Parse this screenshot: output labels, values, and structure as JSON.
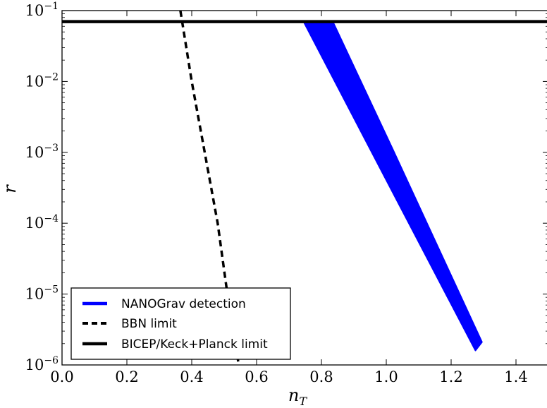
{
  "chart_data": {
    "type": "line",
    "title": "",
    "xlabel": {
      "base": "n",
      "sub": "T"
    },
    "ylabel": "r",
    "xlim": [
      0.0,
      1.5
    ],
    "ylim": [
      1e-06,
      0.1
    ],
    "yscale": "log",
    "grid": false,
    "legend_position": "lower-left",
    "x_ticks": [
      {
        "value": 0.0,
        "label": "0.0"
      },
      {
        "value": 0.2,
        "label": "0.2"
      },
      {
        "value": 0.4,
        "label": "0.4"
      },
      {
        "value": 0.6,
        "label": "0.6"
      },
      {
        "value": 0.8,
        "label": "0.8"
      },
      {
        "value": 1.0,
        "label": "1.0"
      },
      {
        "value": 1.2,
        "label": "1.2"
      },
      {
        "value": 1.4,
        "label": "1.4"
      }
    ],
    "y_ticks": [
      {
        "value": 1e-06,
        "base": "10",
        "exp": "−6"
      },
      {
        "value": 1e-05,
        "base": "10",
        "exp": "−5"
      },
      {
        "value": 0.0001,
        "base": "10",
        "exp": "−4"
      },
      {
        "value": 0.001,
        "base": "10",
        "exp": "−3"
      },
      {
        "value": 0.01,
        "base": "10",
        "exp": "−2"
      },
      {
        "value": 0.1,
        "base": "10",
        "exp": "−1"
      }
    ],
    "series": [
      {
        "name": "NANOGrav detection",
        "style": "band",
        "color": "#0000ff",
        "x": [
          0.745,
          0.835,
          1.02,
          1.295,
          1.275,
          1.015
        ],
        "y": [
          0.07,
          0.07,
          0.0011,
          2.1e-06,
          1.6e-06,
          0.0003
        ]
      },
      {
        "name": "BBN limit",
        "style": "dashed",
        "color": "#000000",
        "x": [
          0.365,
          0.4,
          0.44,
          0.48,
          0.51,
          0.545
        ],
        "y": [
          0.1,
          0.01,
          0.001,
          0.0001,
          1e-05,
          1e-06
        ]
      },
      {
        "name": "BICEP/Keck+Planck limit",
        "style": "solid",
        "color": "#000000",
        "x": [
          0.0,
          1.5
        ],
        "y": [
          0.07,
          0.07
        ]
      }
    ]
  }
}
